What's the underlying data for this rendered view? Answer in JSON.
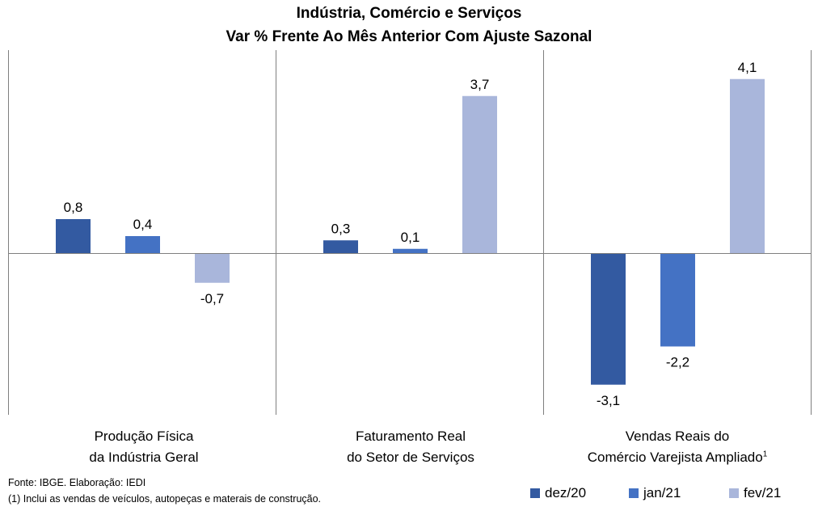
{
  "title_line1": "Indústria, Comércio e Serviços",
  "title_line2": "Var % Frente Ao Mês Anterior Com Ajuste Sazonal",
  "colors": {
    "dez/20": "#335AA1",
    "jan/21": "#4472C4",
    "fev/21": "#A9B6DB"
  },
  "chart_data": {
    "type": "bar",
    "categories": [
      "Produção Física da Indústria Geral",
      "Faturamento Real do Setor de Serviços",
      "Vendas Reais do Comércio Varejista Ampliado¹"
    ],
    "category_lines": [
      [
        "Produção Física",
        "da Indústria Geral"
      ],
      [
        "Faturamento Real",
        "do Setor de Serviços"
      ],
      [
        "Vendas Reais do",
        "Comércio Varejista Ampliado"
      ]
    ],
    "series": [
      {
        "name": "dez/20",
        "values": [
          0.8,
          0.3,
          -3.1
        ],
        "labels": [
          "0,8",
          "0,3",
          "-3,1"
        ]
      },
      {
        "name": "jan/21",
        "values": [
          0.4,
          0.1,
          -2.2
        ],
        "labels": [
          "0,4",
          "0,1",
          "-2,2"
        ]
      },
      {
        "name": "fev/21",
        "values": [
          -0.7,
          3.7,
          4.1
        ],
        "labels": [
          "-0,7",
          "3,7",
          "4,1"
        ]
      }
    ],
    "ylim": [
      -3.7,
      4.6
    ],
    "legend_position": "bottom-right"
  },
  "footnote_marker": "1",
  "source": "Fonte: IBGE. Elaboração: IEDI",
  "note": "(1) Inclui as vendas de veículos, autopeças e materais de construção."
}
